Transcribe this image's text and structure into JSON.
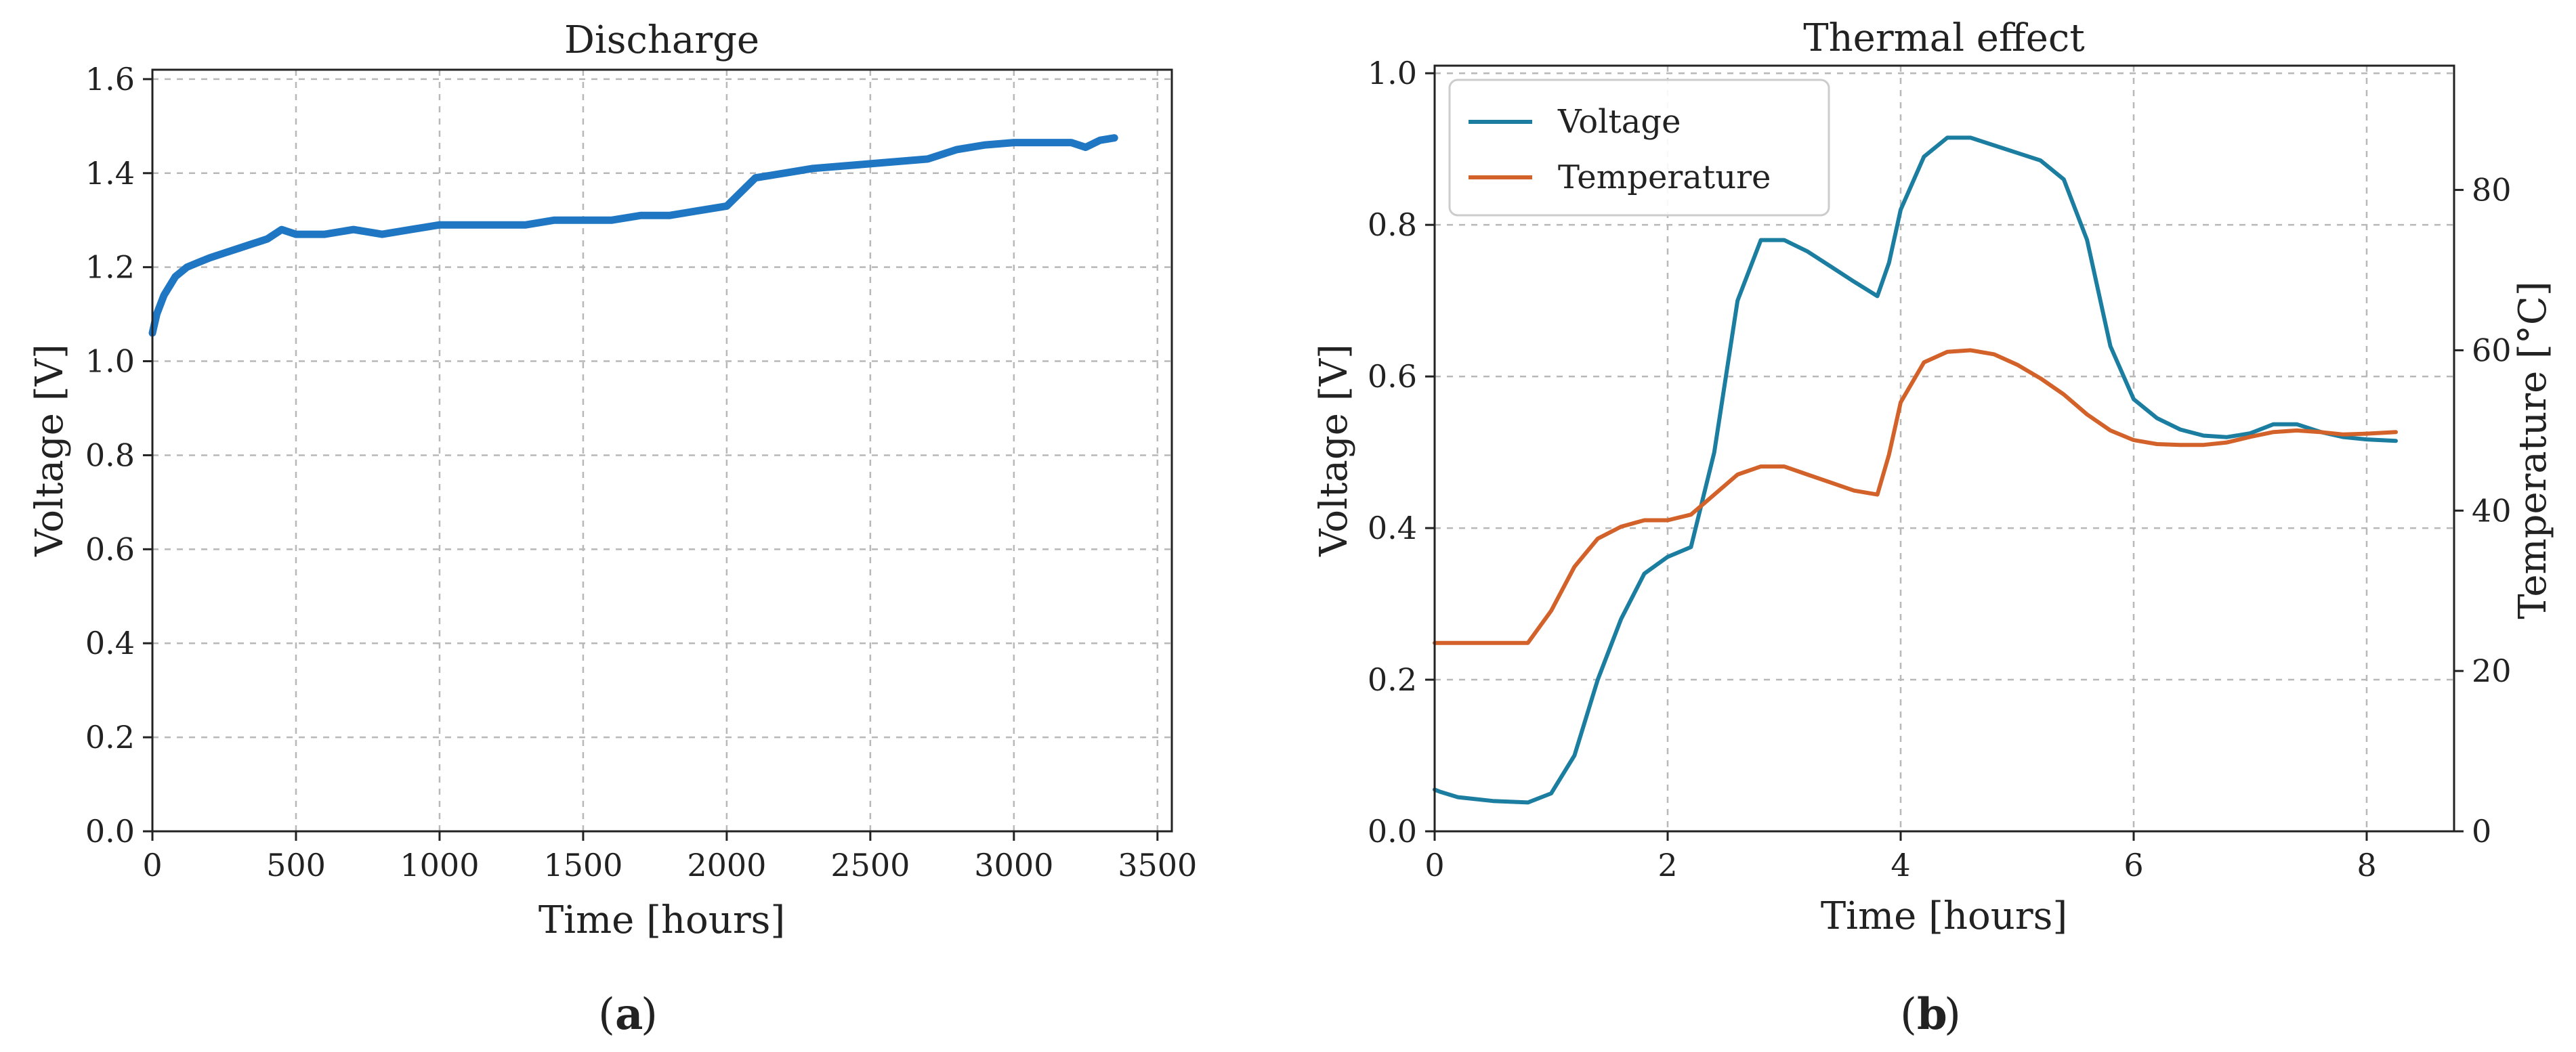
{
  "chart_data": [
    {
      "type": "line",
      "title": "Discharge",
      "xlabel": "Time [hours]",
      "ylabel": "Voltage [V]",
      "xlim": [
        0,
        3550
      ],
      "ylim": [
        0,
        1.62
      ],
      "grid": true,
      "xticks": [
        0,
        500,
        1000,
        1500,
        2000,
        2500,
        3000,
        3500
      ],
      "xtick_labels": [
        "0",
        "500",
        "1000",
        "1500",
        "2000",
        "2500",
        "3000",
        "3500"
      ],
      "yticks": [
        0,
        0.2,
        0.4,
        0.6,
        0.8,
        1.0,
        1.2,
        1.4,
        1.6
      ],
      "ytick_labels": [
        "0.0",
        "0.2",
        "0.4",
        "0.6",
        "0.8",
        "1.0",
        "1.2",
        "1.4",
        "1.6"
      ],
      "series": [
        {
          "name": "Voltage",
          "color": "#1f77c4",
          "x": [
            0,
            15,
            40,
            80,
            120,
            160,
            200,
            250,
            300,
            350,
            400,
            450,
            500,
            550,
            600,
            700,
            800,
            900,
            1000,
            1100,
            1200,
            1300,
            1400,
            1500,
            1600,
            1700,
            1800,
            1900,
            2000,
            2050,
            2100,
            2200,
            2300,
            2400,
            2500,
            2600,
            2700,
            2800,
            2900,
            3000,
            3100,
            3200,
            3250,
            3300,
            3350
          ],
          "y": [
            1.06,
            1.1,
            1.14,
            1.18,
            1.2,
            1.21,
            1.22,
            1.23,
            1.24,
            1.25,
            1.26,
            1.28,
            1.27,
            1.27,
            1.27,
            1.28,
            1.27,
            1.28,
            1.29,
            1.29,
            1.29,
            1.29,
            1.3,
            1.3,
            1.3,
            1.31,
            1.31,
            1.32,
            1.33,
            1.36,
            1.39,
            1.4,
            1.41,
            1.415,
            1.42,
            1.425,
            1.43,
            1.45,
            1.46,
            1.465,
            1.465,
            1.465,
            1.455,
            1.47,
            1.475
          ]
        }
      ],
      "panel_label": "a"
    },
    {
      "type": "line",
      "title": "Thermal effect",
      "xlabel": "Time [hours]",
      "ylabel": "Voltage [V]",
      "y2label": "Temperature [°C]",
      "xlim": [
        0,
        8.75
      ],
      "ylim": [
        0,
        1.01
      ],
      "y2lim": [
        0,
        95.5
      ],
      "grid": true,
      "xticks": [
        0,
        2,
        4,
        6,
        8
      ],
      "xtick_labels": [
        "0",
        "2",
        "4",
        "6",
        "8"
      ],
      "yticks": [
        0,
        0.2,
        0.4,
        0.6,
        0.8,
        1.0
      ],
      "ytick_labels": [
        "0.0",
        "0.2",
        "0.4",
        "0.6",
        "0.8",
        "1.0"
      ],
      "y2ticks": [
        0,
        20,
        40,
        60,
        80
      ],
      "y2tick_labels": [
        "0",
        "20",
        "40",
        "60",
        "80"
      ],
      "legend": "top-left",
      "series": [
        {
          "name": "Voltage",
          "color": "#1b7ea0",
          "axis": "left",
          "x": [
            0,
            0.05,
            0.2,
            0.5,
            0.8,
            1.0,
            1.2,
            1.4,
            1.6,
            1.8,
            2.0,
            2.2,
            2.4,
            2.6,
            2.8,
            3.0,
            3.2,
            3.4,
            3.6,
            3.8,
            3.9,
            4.0,
            4.2,
            4.4,
            4.6,
            4.8,
            5.0,
            5.2,
            5.4,
            5.6,
            5.8,
            6.0,
            6.2,
            6.4,
            6.6,
            6.8,
            7.0,
            7.2,
            7.4,
            7.6,
            7.8,
            8.0,
            8.25
          ],
          "y": [
            0.055,
            0.052,
            0.045,
            0.04,
            0.038,
            0.05,
            0.1,
            0.2,
            0.28,
            0.34,
            0.362,
            0.375,
            0.5,
            0.7,
            0.78,
            0.78,
            0.765,
            0.745,
            0.725,
            0.706,
            0.75,
            0.82,
            0.89,
            0.915,
            0.915,
            0.905,
            0.895,
            0.885,
            0.86,
            0.78,
            0.64,
            0.57,
            0.545,
            0.53,
            0.522,
            0.52,
            0.525,
            0.537,
            0.537,
            0.527,
            0.52,
            0.517,
            0.515
          ]
        },
        {
          "name": "Temperature",
          "color": "#d2622a",
          "axis": "right",
          "x": [
            0,
            0.5,
            0.8,
            1.0,
            1.2,
            1.4,
            1.6,
            1.8,
            2.0,
            2.2,
            2.4,
            2.6,
            2.8,
            3.0,
            3.2,
            3.4,
            3.6,
            3.8,
            3.9,
            4.0,
            4.2,
            4.4,
            4.6,
            4.8,
            5.0,
            5.2,
            5.4,
            5.6,
            5.8,
            6.0,
            6.2,
            6.4,
            6.6,
            6.8,
            7.0,
            7.2,
            7.4,
            7.6,
            7.8,
            8.0,
            8.25
          ],
          "y": [
            23.5,
            23.5,
            23.5,
            27.5,
            33.0,
            36.5,
            38.0,
            38.8,
            38.8,
            39.5,
            42.0,
            44.5,
            45.5,
            45.5,
            44.5,
            43.5,
            42.5,
            42.0,
            47.0,
            53.5,
            58.5,
            59.8,
            60.0,
            59.5,
            58.2,
            56.5,
            54.5,
            52.0,
            50.0,
            48.8,
            48.3,
            48.2,
            48.2,
            48.5,
            49.2,
            49.8,
            50.0,
            49.8,
            49.5,
            49.6,
            49.8
          ]
        }
      ],
      "panel_label": "b"
    }
  ]
}
